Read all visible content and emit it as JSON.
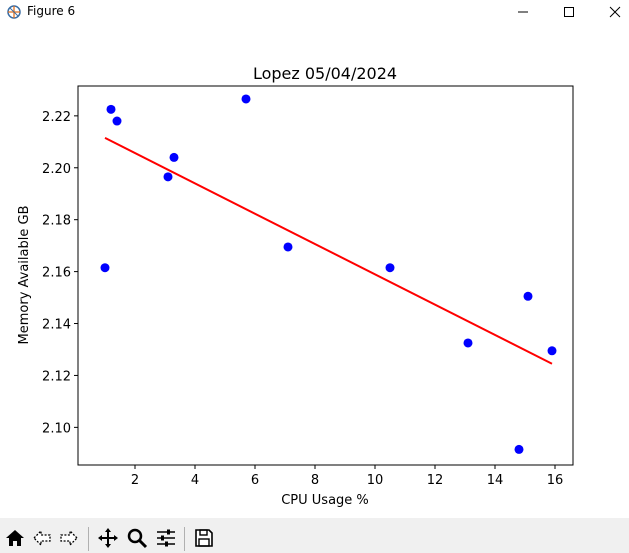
{
  "window": {
    "title": "Figure 6",
    "icons": [
      "figure-app-icon",
      "minimize-icon",
      "maximize-icon",
      "close-icon"
    ]
  },
  "toolbar": {
    "buttons": [
      "home-icon",
      "back-arrow-icon",
      "forward-arrow-icon",
      "pan-icon",
      "zoom-icon",
      "configure-subplots-icon",
      "save-icon"
    ]
  },
  "chart_data": {
    "type": "scatter",
    "title": "Lopez 05/04/2024",
    "xlabel": "CPU Usage %",
    "ylabel": "Memory Available GB",
    "xlim": [
      0.1,
      16.6
    ],
    "ylim": [
      2.0855,
      2.2315
    ],
    "xticks": [
      2,
      4,
      6,
      8,
      10,
      12,
      14,
      16
    ],
    "yticks": [
      2.1,
      2.12,
      2.14,
      2.16,
      2.18,
      2.2,
      2.22
    ],
    "yticklabels": [
      "2.10",
      "2.12",
      "2.14",
      "2.16",
      "2.18",
      "2.20",
      "2.22"
    ],
    "grid": false,
    "point_color": "#0000ff",
    "points": [
      {
        "x": 1.0,
        "y": 2.1615
      },
      {
        "x": 1.2,
        "y": 2.2225
      },
      {
        "x": 1.4,
        "y": 2.218
      },
      {
        "x": 3.1,
        "y": 2.1965
      },
      {
        "x": 3.3,
        "y": 2.204
      },
      {
        "x": 5.7,
        "y": 2.2265
      },
      {
        "x": 7.1,
        "y": 2.1695
      },
      {
        "x": 10.5,
        "y": 2.1615
      },
      {
        "x": 13.1,
        "y": 2.1325
      },
      {
        "x": 14.8,
        "y": 2.0915
      },
      {
        "x": 15.1,
        "y": 2.1505
      },
      {
        "x": 15.9,
        "y": 2.1295
      }
    ],
    "fit_line": {
      "color": "#ff0000",
      "x": [
        1.0,
        15.9
      ],
      "y": [
        2.2115,
        2.1245
      ]
    }
  }
}
